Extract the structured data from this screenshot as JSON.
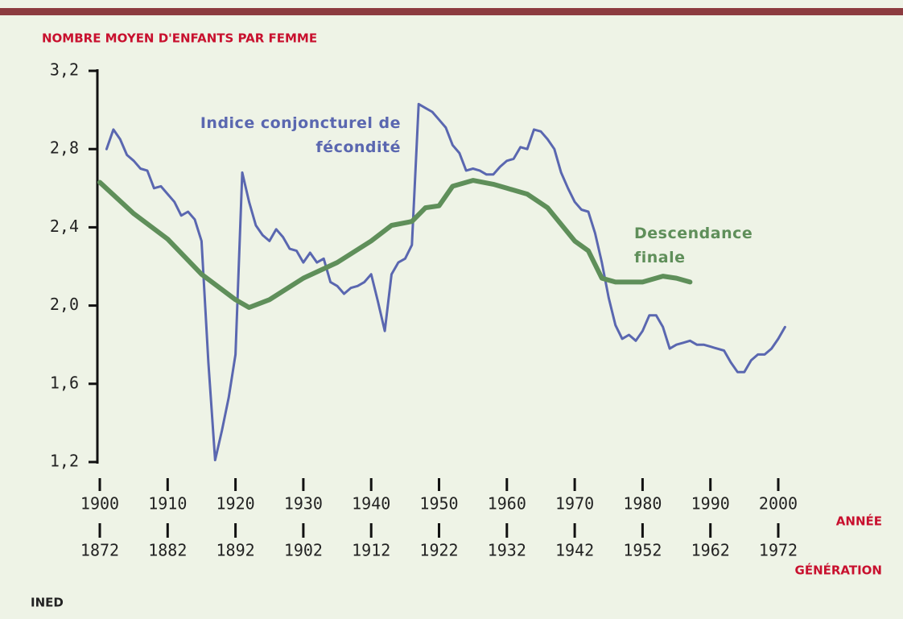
{
  "chart_data": {
    "type": "line",
    "y_axis_label": "NOMBRE MOYEN D'ENFANTS PAR FEMME",
    "x_axis_label": "ANNÉE",
    "x2_axis_label": "GÉNÉRATION",
    "source": "INED",
    "xlim": [
      1900,
      2000
    ],
    "xticks": [
      1900,
      1910,
      1920,
      1930,
      1940,
      1950,
      1960,
      1970,
      1980,
      1990,
      2000
    ],
    "x2lim": [
      1872,
      1972
    ],
    "x2ticks": [
      1872,
      1882,
      1892,
      1902,
      1912,
      1922,
      1932,
      1942,
      1952,
      1962,
      1972
    ],
    "ylim": [
      1.2,
      3.2
    ],
    "yticks": [
      {
        "value": 1.2,
        "label": "1,2"
      },
      {
        "value": 1.6,
        "label": "1,6"
      },
      {
        "value": 2.0,
        "label": "2,0"
      },
      {
        "value": 2.4,
        "label": "2,4"
      },
      {
        "value": 2.8,
        "label": "2,8"
      },
      {
        "value": 3.2,
        "label": "3,2"
      }
    ],
    "grid": false,
    "series": [
      {
        "name": "Indice conjoncturel de fécondité",
        "color": "#5a67b0",
        "x": [
          1901,
          1902,
          1903,
          1904,
          1905,
          1906,
          1907,
          1908,
          1909,
          1910,
          1911,
          1912,
          1913,
          1914,
          1915,
          1916,
          1917,
          1918,
          1919,
          1920,
          1921,
          1922,
          1923,
          1924,
          1925,
          1926,
          1927,
          1928,
          1929,
          1930,
          1931,
          1932,
          1933,
          1934,
          1935,
          1936,
          1937,
          1938,
          1939,
          1940,
          1941,
          1942,
          1943,
          1944,
          1945,
          1946,
          1947,
          1948,
          1949,
          1950,
          1951,
          1952,
          1953,
          1954,
          1955,
          1956,
          1957,
          1958,
          1959,
          1960,
          1961,
          1962,
          1963,
          1964,
          1965,
          1966,
          1967,
          1968,
          1969,
          1970,
          1971,
          1972,
          1973,
          1974,
          1975,
          1976,
          1977,
          1978,
          1979,
          1980,
          1981,
          1982,
          1983,
          1984,
          1985,
          1986,
          1987,
          1988,
          1989,
          1990,
          1991,
          1992,
          1993,
          1994,
          1995,
          1996,
          1997,
          1998,
          1999,
          2000,
          2001
        ],
        "values": [
          2.8,
          2.9,
          2.85,
          2.77,
          2.74,
          2.7,
          2.69,
          2.6,
          2.61,
          2.57,
          2.53,
          2.46,
          2.48,
          2.44,
          2.33,
          1.71,
          1.21,
          1.36,
          1.53,
          1.75,
          2.68,
          2.53,
          2.41,
          2.36,
          2.33,
          2.39,
          2.35,
          2.29,
          2.28,
          2.22,
          2.27,
          2.22,
          2.24,
          2.12,
          2.1,
          2.06,
          2.09,
          2.1,
          2.12,
          2.16,
          2.02,
          1.87,
          2.16,
          2.22,
          2.24,
          2.31,
          3.03,
          3.01,
          2.99,
          2.95,
          2.91,
          2.82,
          2.78,
          2.69,
          2.7,
          2.69,
          2.67,
          2.67,
          2.71,
          2.74,
          2.75,
          2.81,
          2.8,
          2.9,
          2.89,
          2.85,
          2.8,
          2.68,
          2.6,
          2.53,
          2.49,
          2.48,
          2.37,
          2.22,
          2.04,
          1.9,
          1.83,
          1.85,
          1.82,
          1.87,
          1.95,
          1.95,
          1.89,
          1.78,
          1.8,
          1.81,
          1.82,
          1.8,
          1.8,
          1.79,
          1.78,
          1.77,
          1.71,
          1.66,
          1.66,
          1.72,
          1.75,
          1.75,
          1.78,
          1.83,
          1.89
        ]
      },
      {
        "name": "Descendance finale",
        "color": "#5f8f5a",
        "x": [
          1900,
          1905,
          1910,
          1915,
          1920,
          1922,
          1925,
          1930,
          1935,
          1940,
          1943,
          1946,
          1948,
          1950,
          1952,
          1955,
          1958,
          1960,
          1963,
          1966,
          1970,
          1972,
          1974,
          1976,
          1980,
          1983,
          1985,
          1987
        ],
        "values": [
          2.63,
          2.47,
          2.34,
          2.16,
          2.03,
          1.99,
          2.03,
          2.14,
          2.22,
          2.33,
          2.41,
          2.43,
          2.5,
          2.51,
          2.61,
          2.64,
          2.62,
          2.6,
          2.57,
          2.5,
          2.33,
          2.28,
          2.14,
          2.12,
          2.12,
          2.15,
          2.14,
          2.12
        ]
      }
    ]
  }
}
